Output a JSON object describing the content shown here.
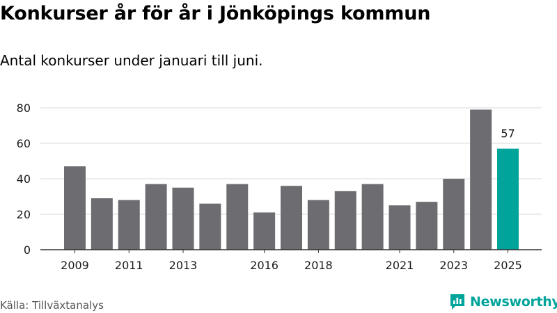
{
  "title": "Konkurser år för år i Jönköpings kommun",
  "subtitle": "Antal konkurser under januari till juni.",
  "source": "Källa: Tillväxtanalys",
  "brand": "Newsworthy",
  "colors": {
    "bar": "#6d6c71",
    "highlight": "#00a49b",
    "grid": "#d9d9d9",
    "axis": "#333333",
    "text": "#1a1a1a"
  },
  "chart_data": {
    "type": "bar",
    "title": "Konkurser år för år i Jönköpings kommun",
    "subtitle": "Antal konkurser under januari till juni.",
    "categories": [
      "2009",
      "2010",
      "2011",
      "2012",
      "2013",
      "2014",
      "2015",
      "2016",
      "2017",
      "2018",
      "2019",
      "2020",
      "2021",
      "2022",
      "2023",
      "2024",
      "2025"
    ],
    "values": [
      47,
      29,
      28,
      37,
      35,
      26,
      37,
      21,
      36,
      28,
      33,
      37,
      25,
      27,
      40,
      79,
      57
    ],
    "x_tick_labels": [
      "2009",
      "2011",
      "2013",
      "2016",
      "2018",
      "2021",
      "2023",
      "2025"
    ],
    "y_ticks": [
      0,
      20,
      40,
      60,
      80
    ],
    "ylim": [
      0,
      80
    ],
    "highlight_category": "2025",
    "data_labels": [
      {
        "category": "2025",
        "text": "57"
      }
    ],
    "grid": true,
    "legend": false
  }
}
